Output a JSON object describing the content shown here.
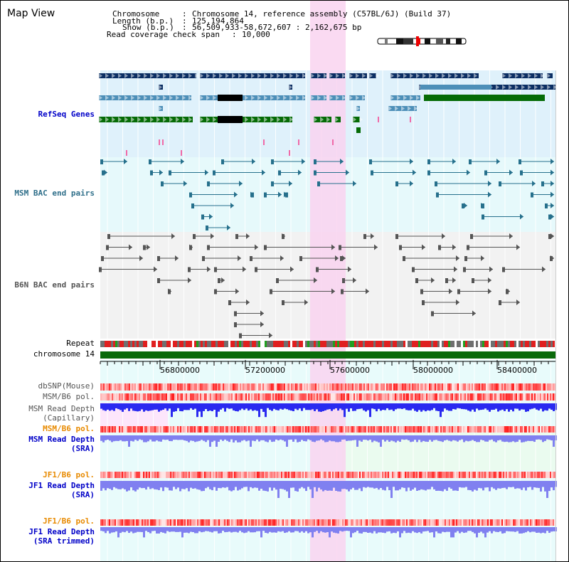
{
  "title": "Map View",
  "header": {
    "chromosome_key": "Chromosome",
    "chromosome_val": "Chromosome 14, reference assembly (C57BL/6J) (Build 37)",
    "length_key": "Length (b.p.)",
    "length_val": "125,194,864",
    "show_key": "Show (b.p.)",
    "show_val": "56,509,933-58,672,607 : 2,162,675 bp",
    "coverage_key": "Read coverage check span",
    "coverage_val": "10,000"
  },
  "tracks": {
    "refseq": "RefSeq Genes",
    "msm_bac": "MSM BAC end pairs",
    "b6n_bac": "B6N BAC end pairs",
    "repeat": "Repeat",
    "chromosome": "chromosome 14",
    "dbsnp": "dbSNP(Mouse)",
    "msm_pol_cap": "MSM/B6 pol.",
    "msm_depth_cap_1": "MSM Read Depth",
    "msm_depth_cap_2": "(Capillary)",
    "msm_pol_sra": "MSM/B6 pol.",
    "msm_depth_sra_1": "MSM Read Depth",
    "msm_depth_sra_2": "(SRA)",
    "jf1_pol": "JF1/B6 pol.",
    "jf1_depth_1": "JF1 Read Depth",
    "jf1_depth_2": "(SRA)",
    "jf1_pol_t": "JF1/B6 pol.",
    "jf1_depth_t_1": "JF1 Read Depth",
    "jf1_depth_t_2": "(SRA trimmed)"
  },
  "axis_ticks": [
    "56800000",
    "57200000",
    "57600000",
    "58000000",
    "58400000"
  ],
  "colors": {
    "refseq_bg": "#dff1fb",
    "msm_bac_bg": "#e6f9fb",
    "b6n_bac_bg": "#f2f2f2",
    "lower_bg": "#e8fbfb",
    "highlight": "#f9d4f0",
    "gene_dark": "#0b2e63",
    "gene_mid": "#4d8fb8",
    "gene_green": "#056b06",
    "msm_line": "#26708c",
    "b6n_line": "#555555",
    "depth_blue": "#2a2af0",
    "depth_light": "#8080f0",
    "label_blue": "#0000c8",
    "label_orange": "#e88a00",
    "label_teal": "#2f6f8a"
  }
}
